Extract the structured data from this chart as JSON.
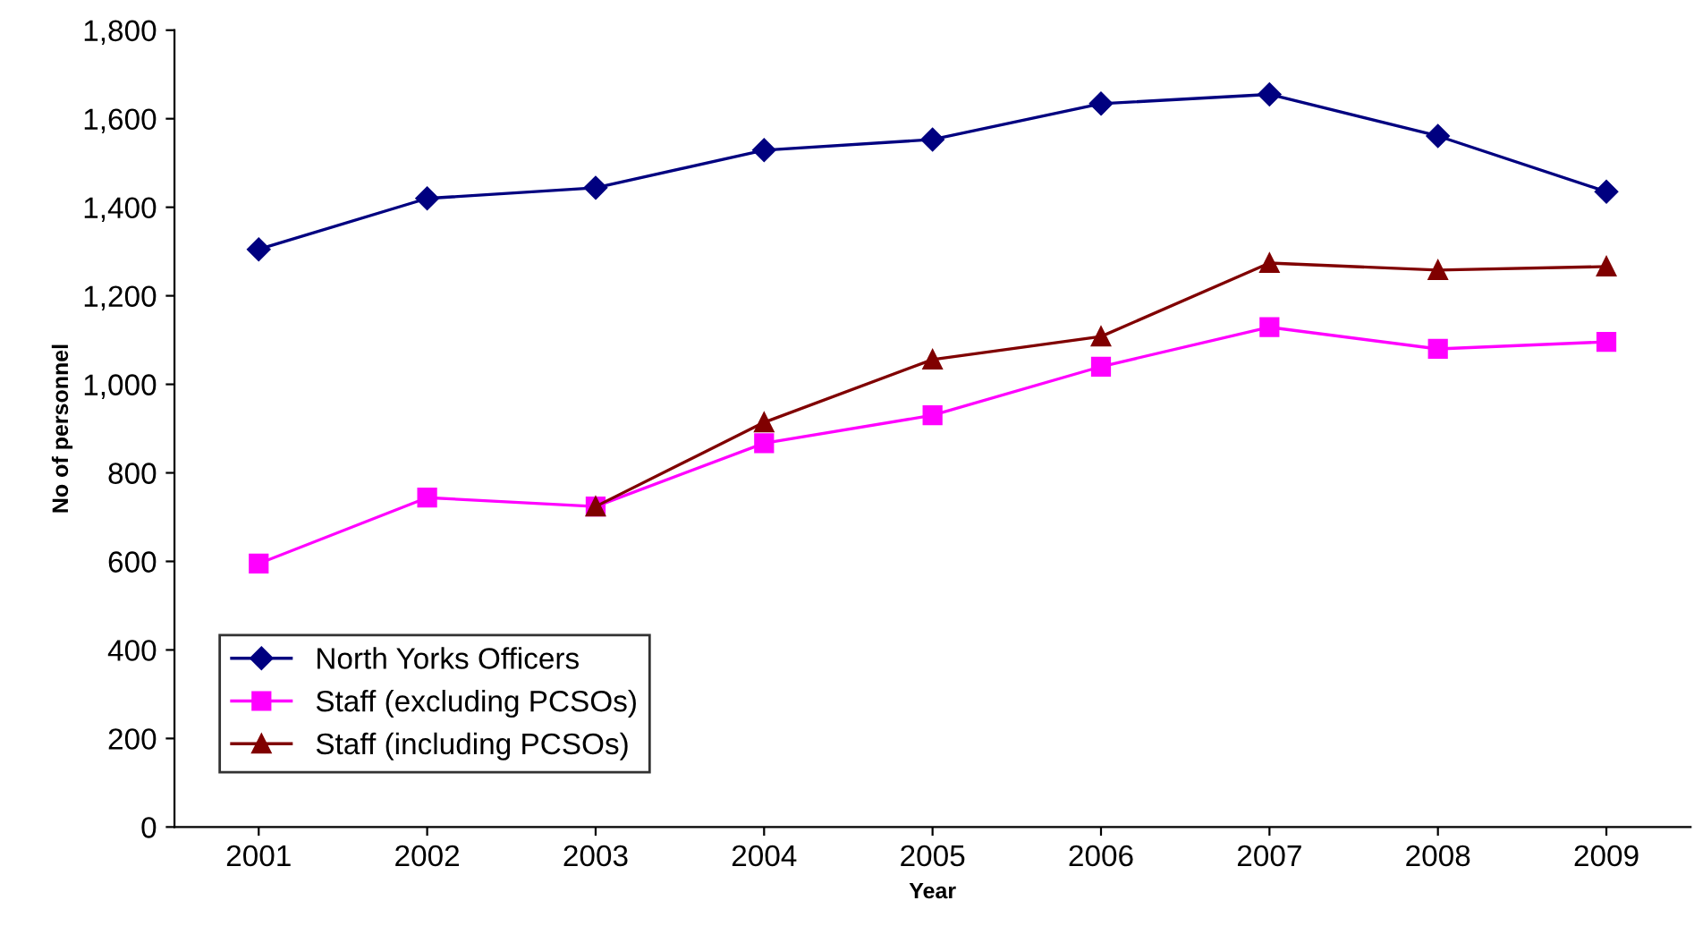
{
  "chart_data": {
    "type": "line",
    "xlabel": "Year",
    "ylabel": "No of personnel",
    "categories": [
      "2001",
      "2002",
      "2003",
      "2004",
      "2005",
      "2006",
      "2007",
      "2008",
      "2009"
    ],
    "series": [
      {
        "name": "North Yorks Officers",
        "color": "#000080",
        "marker": "diamond",
        "values": [
          1305,
          1420,
          1444,
          1529,
          1553,
          1634,
          1655,
          1561,
          1435
        ]
      },
      {
        "name": "Staff (excluding PCSOs)",
        "color": "#ff00ff",
        "marker": "square",
        "values": [
          595,
          744,
          724,
          867,
          930,
          1040,
          1129,
          1080,
          1096
        ]
      },
      {
        "name": "Staff (including PCSOs)",
        "color": "#800000",
        "marker": "triangle",
        "values": [
          null,
          null,
          724,
          914,
          1056,
          1108,
          1274,
          1258,
          1266
        ]
      }
    ],
    "ylim": [
      0,
      1800
    ],
    "yticks": [
      0,
      200,
      400,
      600,
      800,
      {
        "value": 1000,
        "label": "1,000"
      },
      {
        "value": 1200,
        "label": "1,200"
      },
      {
        "value": 1400,
        "label": "1,400"
      },
      {
        "value": 1600,
        "label": "1,600"
      },
      {
        "value": 1800,
        "label": "1,800"
      }
    ],
    "legend": "bottom left",
    "grid": false,
    "line_style": "solid"
  }
}
